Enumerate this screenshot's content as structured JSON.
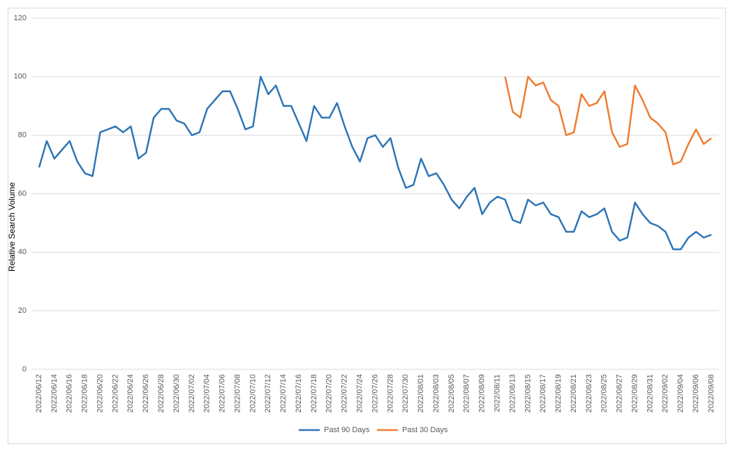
{
  "chart_data": {
    "type": "line",
    "y_label": "Relative Search Volume",
    "categories": [
      "2022/06/12",
      null,
      "2022/06/14",
      null,
      "2022/06/16",
      null,
      "2022/06/18",
      null,
      "2022/06/20",
      null,
      "2022/06/22",
      null,
      "2022/06/24",
      null,
      "2022/06/26",
      null,
      "2022/06/28",
      null,
      "2022/06/30",
      null,
      "2022/07/02",
      null,
      "2022/07/04",
      null,
      "2022/07/06",
      null,
      "2022/07/08",
      null,
      "2022/07/10",
      null,
      "2022/07/12",
      null,
      "2022/07/14",
      null,
      "2022/07/16",
      null,
      "2022/07/18",
      null,
      "2022/07/20",
      null,
      "2022/07/22",
      null,
      "2022/07/24",
      null,
      "2022/07/26",
      null,
      "2022/07/28",
      null,
      "2022/07/30",
      null,
      "2022/08/01",
      null,
      "2022/08/03",
      null,
      "2022/08/05",
      null,
      "2022/08/07",
      null,
      "2022/08/09",
      null,
      "2022/08/11",
      null,
      "2022/08/13",
      null,
      "2022/08/15",
      null,
      "2022/08/17",
      null,
      "2022/08/19",
      null,
      "2022/08/21",
      null,
      "2022/08/23",
      null,
      "2022/08/25",
      null,
      "2022/08/27",
      null,
      "2022/08/29",
      null,
      "2022/08/31",
      null,
      "2022/09/02",
      null,
      "2022/09/04",
      null,
      "2022/09/06",
      null,
      "2022/09/08"
    ],
    "series": [
      {
        "name": "Past 90 Days",
        "color": "#2e75b6",
        "values": [
          69,
          78,
          72,
          75,
          78,
          71,
          67,
          66,
          81,
          82,
          83,
          81,
          83,
          72,
          74,
          86,
          89,
          89,
          85,
          84,
          80,
          81,
          89,
          92,
          95,
          95,
          89,
          82,
          83,
          100,
          94,
          97,
          90,
          90,
          84,
          78,
          90,
          86,
          86,
          91,
          83,
          76,
          71,
          79,
          80,
          76,
          79,
          69,
          62,
          63,
          72,
          66,
          67,
          63,
          58,
          55,
          59,
          62,
          53,
          57,
          59,
          58,
          51,
          50,
          58,
          56,
          57,
          53,
          52,
          47,
          47,
          54,
          52,
          53,
          55,
          47,
          44,
          45,
          57,
          53,
          50,
          49,
          47,
          41,
          41,
          45,
          47,
          45,
          46
        ]
      },
      {
        "name": "Past 30 Days",
        "color": "#ed7d31",
        "values": [
          null,
          null,
          null,
          null,
          null,
          null,
          null,
          null,
          null,
          null,
          null,
          null,
          null,
          null,
          null,
          null,
          null,
          null,
          null,
          null,
          null,
          null,
          null,
          null,
          null,
          null,
          null,
          null,
          null,
          null,
          null,
          null,
          null,
          null,
          null,
          null,
          null,
          null,
          null,
          null,
          null,
          null,
          null,
          null,
          null,
          null,
          null,
          null,
          null,
          null,
          null,
          null,
          null,
          null,
          null,
          null,
          null,
          null,
          null,
          null,
          null,
          100,
          88,
          86,
          100,
          97,
          98,
          92,
          90,
          80,
          81,
          94,
          90,
          91,
          95,
          81,
          76,
          77,
          97,
          92,
          86,
          84,
          81,
          70,
          71,
          77,
          82,
          77,
          79
        ]
      }
    ],
    "ylim": [
      0,
      120
    ],
    "yticks": [
      0,
      20,
      40,
      60,
      80,
      100,
      120
    ],
    "grid": true,
    "legend": "bottom"
  }
}
